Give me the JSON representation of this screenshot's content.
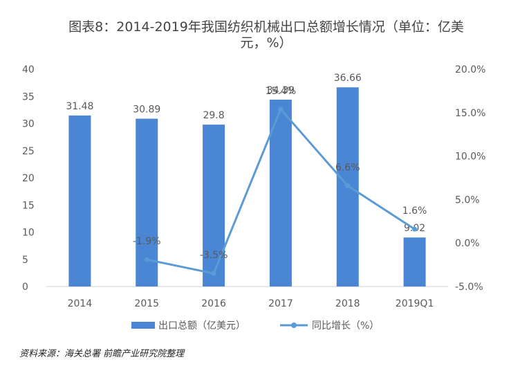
{
  "title_line1": "图表8：2014-2019年我国纺织机械出口总额增长情况（单位：亿美",
  "title_line2": "元，%）",
  "source": "资料来源：海关总署 前瞻产业研究院整理",
  "colors": {
    "bar": "#4a86d4",
    "line": "#5b9bd5",
    "axis": "#d0d0d0",
    "text": "#595959"
  },
  "chart_data": {
    "type": "bar",
    "categories": [
      "2014",
      "2015",
      "2016",
      "2017",
      "2018",
      "2019Q1"
    ],
    "series": [
      {
        "name": "出口总额（亿美元）",
        "type": "bar",
        "axis": "left",
        "values": [
          31.48,
          30.89,
          29.8,
          34.39,
          36.66,
          9.02
        ],
        "labels": [
          "31.48",
          "30.89",
          "29.8",
          "34.39",
          "36.66",
          "9.02"
        ]
      },
      {
        "name": "同比增长（%）",
        "type": "line",
        "axis": "right",
        "values": [
          null,
          -1.9,
          -3.5,
          15.4,
          6.6,
          1.6
        ],
        "labels": [
          "",
          "-1.9%",
          "-3.5%",
          "15.4%",
          "6.6%",
          "1.6%"
        ]
      }
    ],
    "y_left": {
      "min": 0,
      "max": 40,
      "ticks": [
        "0",
        "5",
        "10",
        "15",
        "20",
        "25",
        "30",
        "35",
        "40"
      ]
    },
    "y_right": {
      "min": -5,
      "max": 20,
      "ticks": [
        "-5.0%",
        "0.0%",
        "5.0%",
        "10.0%",
        "15.0%",
        "20.0%"
      ]
    },
    "legend": "bottom",
    "grid": false
  }
}
